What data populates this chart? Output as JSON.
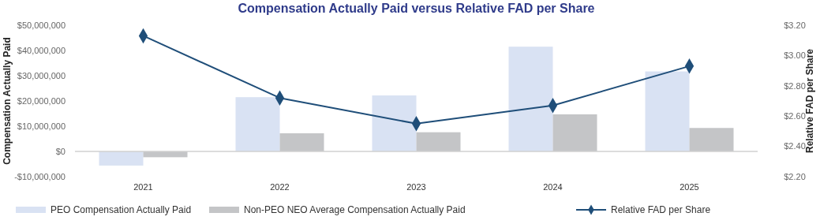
{
  "chart_data": {
    "type": "bar",
    "title": "Compensation Actually Paid versus Relative FAD per Share",
    "ylabel": "Compensation Actually Paid",
    "y2label": "Relative FAD per Share",
    "categories": [
      "2021",
      "2022",
      "2023",
      "2024",
      "2025"
    ],
    "series": [
      {
        "name": "PEO Compensation Actually Paid",
        "color": "#d9e2f3",
        "values": [
          -5600000,
          21500000,
          22200000,
          41500000,
          31700000
        ]
      },
      {
        "name": "Non-PEO NEO Average Compensation Actually Paid",
        "color": "#c4c5c7",
        "values": [
          -2300000,
          7200000,
          7600000,
          14700000,
          9300000
        ]
      },
      {
        "name": "Relative FAD per Share",
        "type": "line",
        "axis": "y2",
        "color": "#1f4e79",
        "marker": "diamond",
        "values": [
          3.13,
          2.72,
          2.55,
          2.67,
          2.93
        ]
      }
    ],
    "ylim": [
      -10000000,
      50000000
    ],
    "yticks": [
      {
        "value": -10000000,
        "label": "-$10,000,000"
      },
      {
        "value": 0,
        "label": "$0"
      },
      {
        "value": 10000000,
        "label": "$10,000,000"
      },
      {
        "value": 20000000,
        "label": "$20,000,000"
      },
      {
        "value": 30000000,
        "label": "$30,000,000"
      },
      {
        "value": 40000000,
        "label": "$40,000,000"
      },
      {
        "value": 50000000,
        "label": "$50,000,000"
      }
    ],
    "y2lim": [
      2.2,
      3.2
    ],
    "y2ticks": [
      {
        "value": 2.2,
        "label": "$2.20"
      },
      {
        "value": 2.4,
        "label": "$2.40"
      },
      {
        "value": 2.6,
        "label": "$2.60"
      },
      {
        "value": 2.8,
        "label": "$2.80"
      },
      {
        "value": 3.0,
        "label": "$3.00"
      },
      {
        "value": 3.2,
        "label": "$3.20"
      }
    ],
    "legend": "bottom"
  }
}
